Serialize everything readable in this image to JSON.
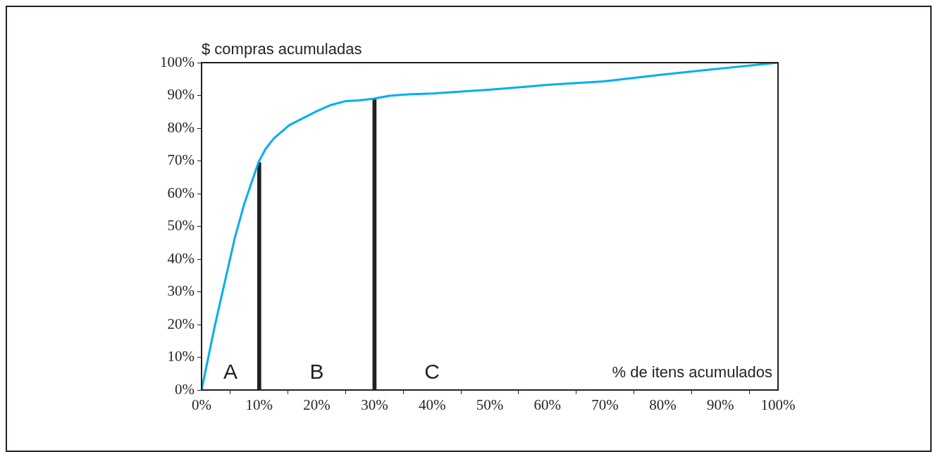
{
  "chart_data": {
    "type": "line",
    "xlabel": "% de itens acumulados",
    "ylabel": "$ compras acumuladas",
    "series": [
      {
        "color": "#00aeef",
        "x": [
          0,
          2.3,
          4.6,
          5.8,
          7.4,
          9.9,
          11.1,
          12.5,
          15.2,
          20,
          22.5,
          24.9,
          27.4,
          29.8,
          32.6,
          35.9,
          40.2,
          50.2,
          60,
          69.9,
          80.2,
          90,
          100
        ],
        "values": [
          0,
          19.6,
          37.4,
          46.7,
          56.8,
          69.7,
          73.6,
          76.8,
          80.9,
          85.2,
          87.1,
          88.2,
          88.5,
          89,
          89.9,
          90.3,
          90.6,
          91.8,
          93.2,
          94.3,
          96.4,
          98.2,
          100
        ]
      },
      {
        "type": "bar",
        "color": "#231f20",
        "x": [
          10,
          30
        ],
        "values": [
          69.5,
          89
        ]
      }
    ],
    "annotations": [
      "A",
      "B",
      "C"
    ],
    "xlim": [
      0,
      100
    ],
    "ylim": [
      0,
      100
    ],
    "xticks": [
      {
        "value": 0,
        "label": "0%"
      },
      {
        "value": 10,
        "label": "10%"
      },
      {
        "value": 20,
        "label": "20%"
      },
      {
        "value": 30,
        "label": "30%"
      },
      {
        "value": 40,
        "label": "40%"
      },
      {
        "value": 50,
        "label": "50%"
      },
      {
        "value": 60,
        "label": "60%"
      },
      {
        "value": 70,
        "label": "70%"
      },
      {
        "value": 80,
        "label": "80%"
      },
      {
        "value": 90,
        "label": "90%"
      },
      {
        "value": 100,
        "label": "100%"
      }
    ],
    "yticks": [
      {
        "value": 0,
        "label": "0%"
      },
      {
        "value": 10,
        "label": "10%"
      },
      {
        "value": 20,
        "label": "20%"
      },
      {
        "value": 30,
        "label": "30%"
      },
      {
        "value": 40,
        "label": "40%"
      },
      {
        "value": 50,
        "label": "50%"
      },
      {
        "value": 60,
        "label": "60%"
      },
      {
        "value": 70,
        "label": "70%"
      },
      {
        "value": 80,
        "label": "80%"
      },
      {
        "value": 90,
        "label": "90%"
      },
      {
        "value": 100,
        "label": "100%"
      }
    ],
    "grid": false,
    "legend": false,
    "marker": "none",
    "line_style": "solid"
  }
}
